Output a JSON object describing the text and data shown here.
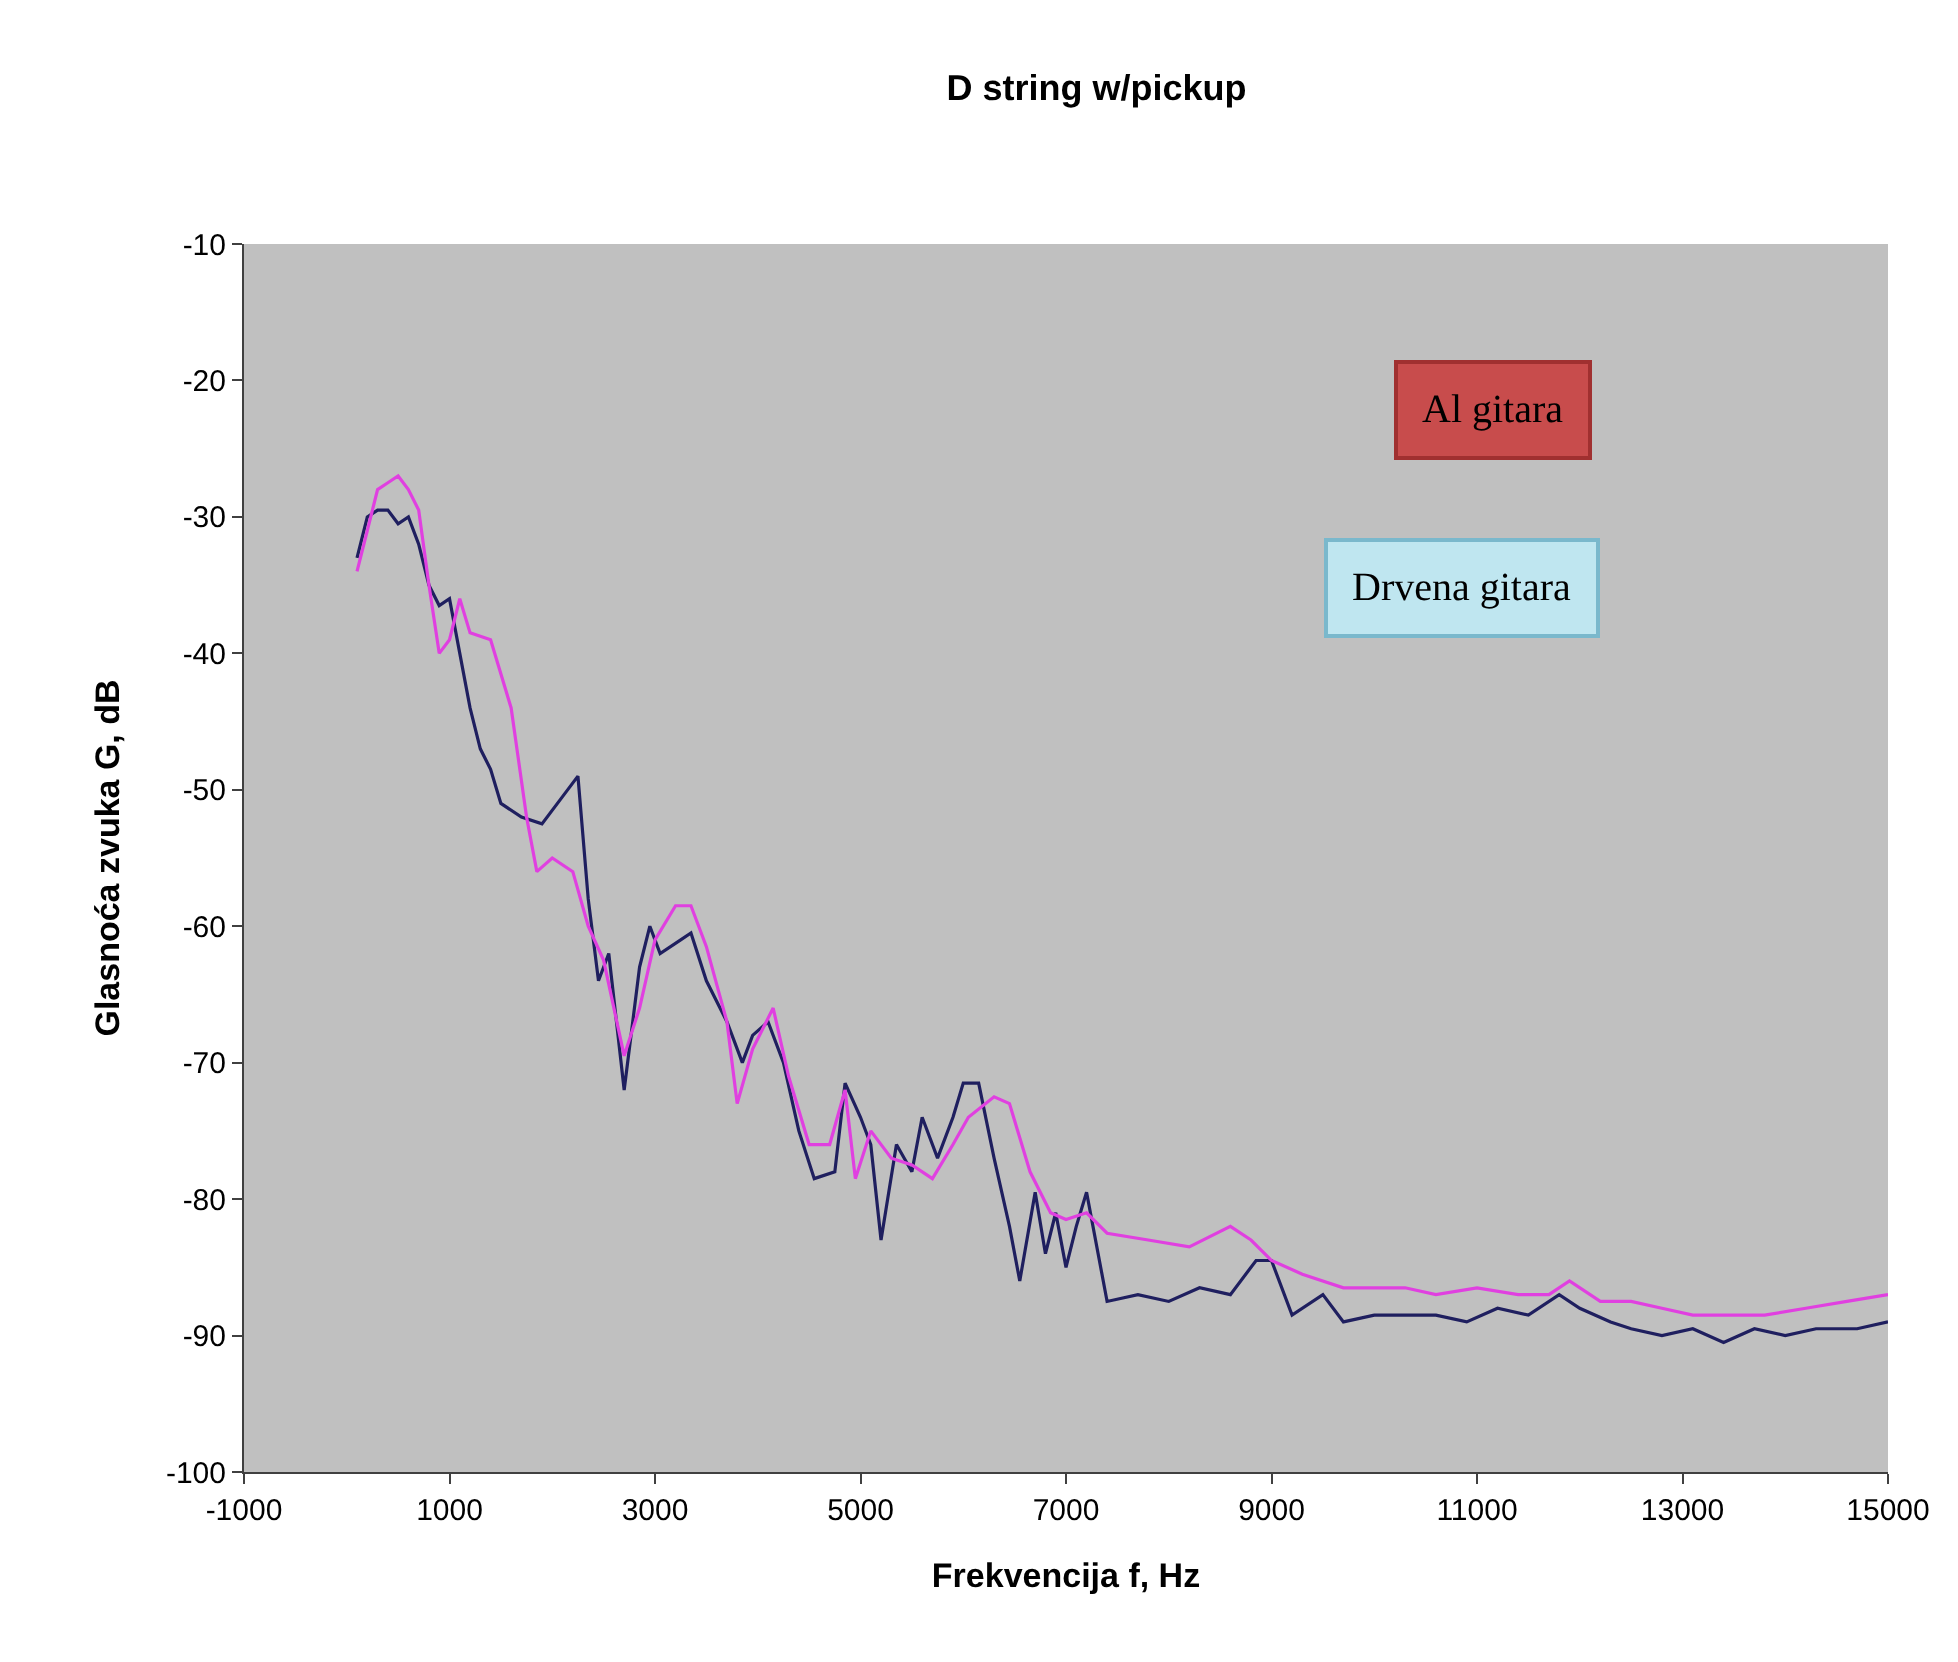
{
  "chart_data": {
    "type": "line",
    "title": "D string w/pickup",
    "xlabel": "Frekvencija f, Hz",
    "ylabel": "Glasnoća zvuka G, dB",
    "annotations": [
      "Al gitara",
      "Drvena gitara"
    ],
    "xlim": [
      -1000,
      15000
    ],
    "xticks": [
      -1000,
      1000,
      3000,
      5000,
      7000,
      9000,
      11000,
      13000,
      15000
    ],
    "ylim": [
      -100,
      -10
    ],
    "yticks": [
      -100,
      -90,
      -80,
      -70,
      -60,
      -50,
      -40,
      -30,
      -20,
      -10
    ],
    "grid": false,
    "marker": "none",
    "line_style": "solid",
    "series": [
      {
        "color": "#1f1f5f",
        "x": [
          100,
          200,
          300,
          400,
          500,
          600,
          700,
          800,
          900,
          1000,
          1100,
          1200,
          1300,
          1400,
          1500,
          1700,
          1900,
          2100,
          2250,
          2350,
          2450,
          2550,
          2700,
          2850,
          2950,
          3050,
          3250,
          3350,
          3500,
          3700,
          3850,
          3950,
          4100,
          4250,
          4400,
          4550,
          4750,
          4850,
          5000,
          5100,
          5200,
          5350,
          5500,
          5600,
          5750,
          5900,
          6000,
          6150,
          6300,
          6450,
          6550,
          6700,
          6800,
          6900,
          7000,
          7100,
          7200,
          7400,
          7700,
          8000,
          8300,
          8600,
          8850,
          9000,
          9200,
          9500,
          9700,
          10000,
          10300,
          10600,
          10900,
          11200,
          11500,
          11800,
          12000,
          12300,
          12500,
          12800,
          13100,
          13400,
          13700,
          14000,
          14300,
          14700,
          15000
        ],
        "values": [
          -33,
          -30,
          -29.5,
          -29.5,
          -30.5,
          -30,
          -32,
          -35,
          -36.5,
          -36,
          -40,
          -44,
          -47,
          -48.5,
          -51,
          -52,
          -52.5,
          -50.5,
          -49,
          -58,
          -64,
          -62,
          -72,
          -63,
          -60,
          -62,
          -61,
          -60.5,
          -64,
          -67,
          -70,
          -68,
          -67,
          -70,
          -75,
          -78.5,
          -78,
          -71.5,
          -74,
          -76,
          -83,
          -76,
          -78,
          -74,
          -77,
          -74,
          -71.5,
          -71.5,
          -77,
          -82,
          -86,
          -79.5,
          -84,
          -81,
          -85,
          -82,
          -79.5,
          -87.5,
          -87,
          -87.5,
          -86.5,
          -87,
          -84.5,
          -84.5,
          -88.5,
          -87,
          -89,
          -88.5,
          -88.5,
          -88.5,
          -89,
          -88,
          -88.5,
          -87,
          -88,
          -89,
          -89.5,
          -90,
          -89.5,
          -90.5,
          -89.5,
          -90,
          -89.5,
          -89.5,
          -89
        ]
      },
      {
        "color": "#e040e0",
        "x": [
          100,
          200,
          300,
          400,
          500,
          600,
          700,
          800,
          900,
          1000,
          1100,
          1200,
          1400,
          1600,
          1750,
          1850,
          2000,
          2200,
          2350,
          2500,
          2700,
          2850,
          3000,
          3200,
          3350,
          3500,
          3700,
          3800,
          3950,
          4150,
          4300,
          4500,
          4700,
          4850,
          4950,
          5100,
          5300,
          5500,
          5700,
          5900,
          6050,
          6300,
          6450,
          6650,
          6850,
          7000,
          7200,
          7400,
          7800,
          8200,
          8600,
          8800,
          9000,
          9300,
          9700,
          10000,
          10300,
          10600,
          11000,
          11400,
          11700,
          11900,
          12200,
          12500,
          12800,
          13100,
          13400,
          13800,
          14200,
          14600,
          15000
        ],
        "values": [
          -34,
          -31,
          -28,
          -27.5,
          -27,
          -28,
          -29.5,
          -35,
          -40,
          -39,
          -36,
          -38.5,
          -39,
          -44,
          -52,
          -56,
          -55,
          -56,
          -60,
          -62.5,
          -69.5,
          -66,
          -61,
          -58.5,
          -58.5,
          -61.5,
          -67,
          -73,
          -69,
          -66,
          -71,
          -76,
          -76,
          -72,
          -78.5,
          -75,
          -77,
          -77.5,
          -78.5,
          -76,
          -74,
          -72.5,
          -73,
          -78,
          -81,
          -81.5,
          -81,
          -82.5,
          -83,
          -83.5,
          -82,
          -83,
          -84.5,
          -85.5,
          -86.5,
          -86.5,
          -86.5,
          -87,
          -86.5,
          -87,
          -87,
          -86,
          -87.5,
          -87.5,
          -88,
          -88.5,
          -88.5,
          -88.5,
          -88,
          -87.5,
          -87
        ]
      }
    ]
  }
}
